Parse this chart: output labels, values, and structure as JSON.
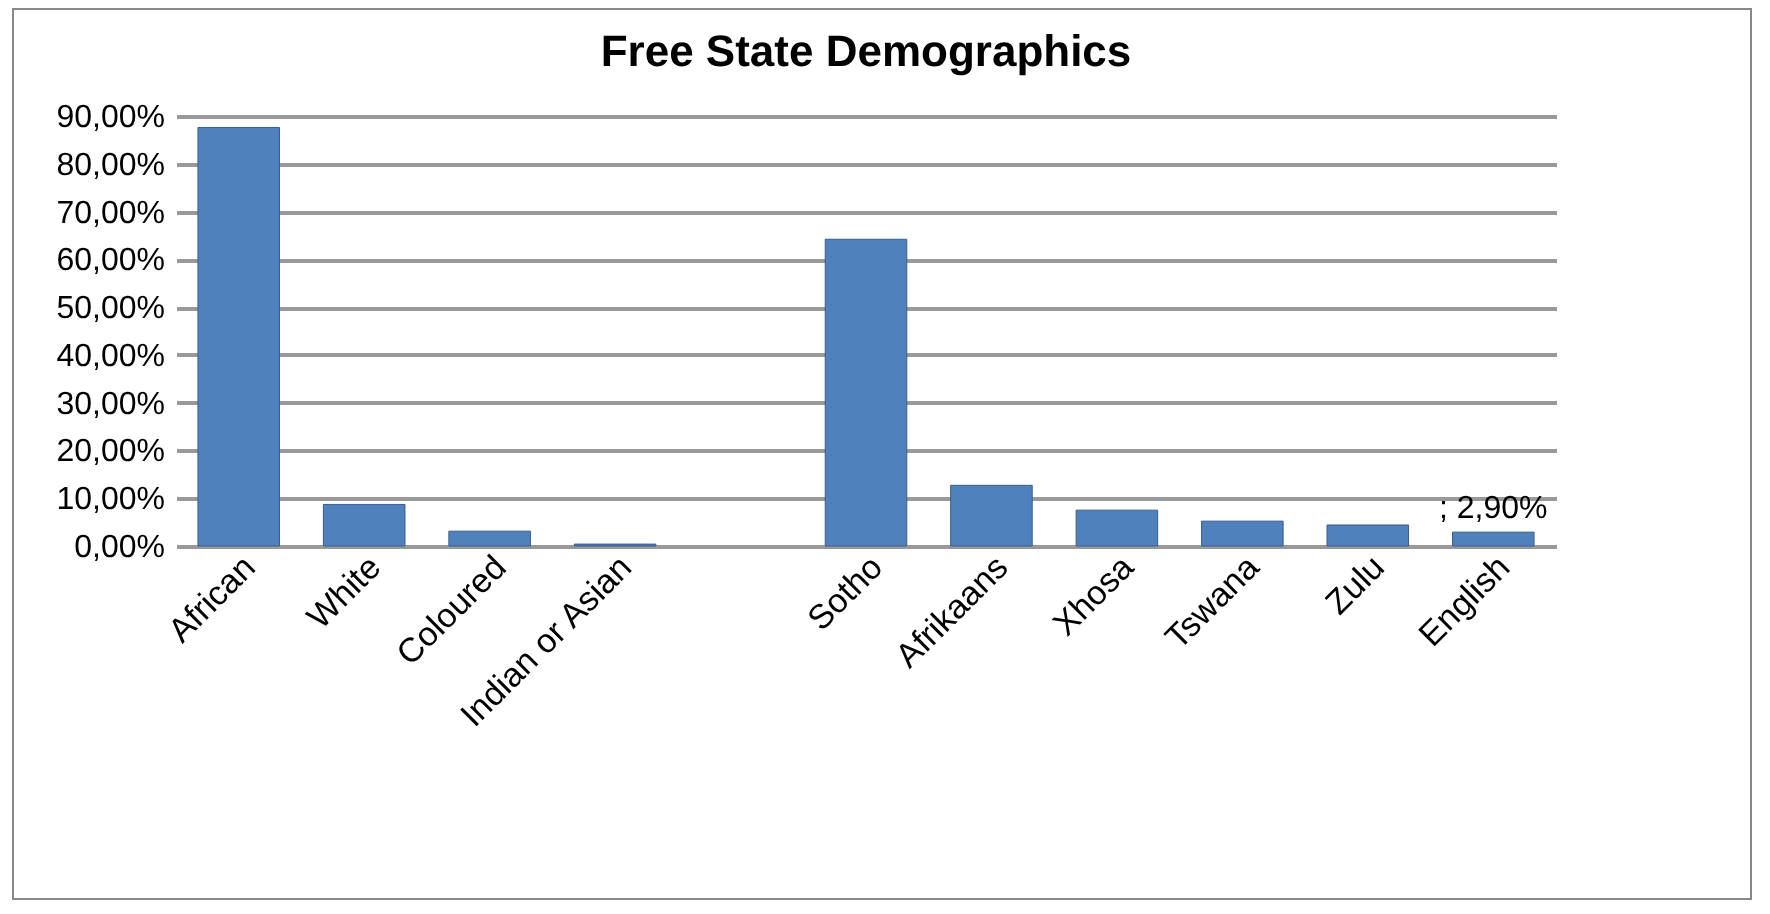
{
  "chart_data": {
    "type": "bar",
    "title": "Free State Demographics",
    "categories": [
      "African",
      "White",
      "Coloured",
      "Indian or Asian",
      null,
      "Sotho",
      "Afrikaans",
      "Xhosa",
      "Tswana",
      "Zulu",
      "English"
    ],
    "values": [
      87.6,
      8.7,
      3.1,
      0.4,
      null,
      64.2,
      12.7,
      7.5,
      5.2,
      4.4,
      2.9
    ],
    "value_labels": [
      null,
      null,
      null,
      null,
      null,
      null,
      null,
      null,
      null,
      null,
      "; 2,90%"
    ],
    "color": "#4f81bd",
    "ylim": [
      0,
      90
    ],
    "yticks": [
      {
        "value": 0,
        "label": "0,00%"
      },
      {
        "value": 10,
        "label": "10,00%"
      },
      {
        "value": 20,
        "label": "20,00%"
      },
      {
        "value": 30,
        "label": "30,00%"
      },
      {
        "value": 40,
        "label": "40,00%"
      },
      {
        "value": 50,
        "label": "50,00%"
      },
      {
        "value": 60,
        "label": "60,00%"
      },
      {
        "value": 70,
        "label": "70,00%"
      },
      {
        "value": 80,
        "label": "80,00%"
      },
      {
        "value": 90,
        "label": "90,00%"
      }
    ],
    "grid": "y"
  }
}
